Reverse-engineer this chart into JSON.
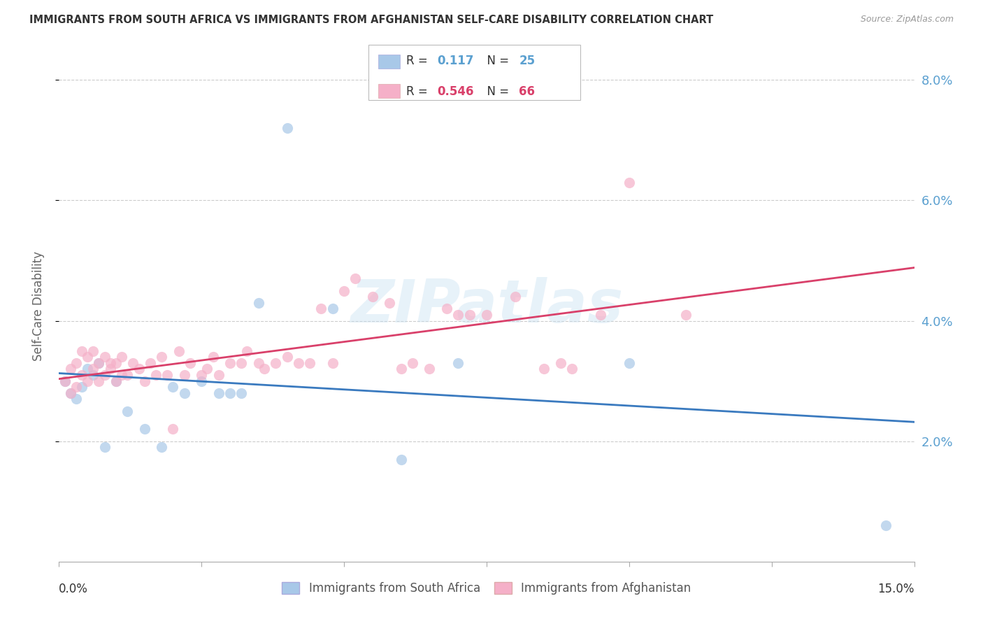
{
  "title": "IMMIGRANTS FROM SOUTH AFRICA VS IMMIGRANTS FROM AFGHANISTAN SELF-CARE DISABILITY CORRELATION CHART",
  "source": "Source: ZipAtlas.com",
  "ylabel": "Self-Care Disability",
  "x_min": 0.0,
  "x_max": 0.15,
  "y_min": 0.0,
  "y_max": 0.085,
  "y_ticks": [
    0.02,
    0.04,
    0.06,
    0.08
  ],
  "y_tick_labels": [
    "2.0%",
    "4.0%",
    "6.0%",
    "8.0%"
  ],
  "background_color": "#ffffff",
  "watermark": "ZIPatlas",
  "blue_scatter_color": "#a8c8e8",
  "pink_scatter_color": "#f5b0c8",
  "blue_line_color": "#3a7abf",
  "pink_line_color": "#d9406a",
  "tick_label_color": "#5ba0d0",
  "legend_R_blue": "0.117",
  "legend_N_blue": "25",
  "legend_R_pink": "0.546",
  "legend_N_pink": "66",
  "sa_x": [
    0.001,
    0.002,
    0.003,
    0.004,
    0.005,
    0.006,
    0.007,
    0.008,
    0.01,
    0.012,
    0.015,
    0.018,
    0.02,
    0.022,
    0.025,
    0.028,
    0.03,
    0.032,
    0.035,
    0.04,
    0.048,
    0.06,
    0.07,
    0.1,
    0.145
  ],
  "sa_y": [
    0.03,
    0.028,
    0.027,
    0.029,
    0.032,
    0.031,
    0.033,
    0.019,
    0.03,
    0.025,
    0.022,
    0.019,
    0.029,
    0.028,
    0.03,
    0.028,
    0.028,
    0.028,
    0.043,
    0.072,
    0.042,
    0.017,
    0.033,
    0.033,
    0.006
  ],
  "af_x": [
    0.001,
    0.002,
    0.002,
    0.003,
    0.003,
    0.004,
    0.004,
    0.005,
    0.005,
    0.006,
    0.006,
    0.007,
    0.007,
    0.008,
    0.008,
    0.009,
    0.009,
    0.01,
    0.01,
    0.011,
    0.011,
    0.012,
    0.013,
    0.014,
    0.015,
    0.016,
    0.017,
    0.018,
    0.019,
    0.02,
    0.021,
    0.022,
    0.023,
    0.025,
    0.026,
    0.027,
    0.028,
    0.03,
    0.032,
    0.033,
    0.035,
    0.036,
    0.038,
    0.04,
    0.042,
    0.044,
    0.046,
    0.048,
    0.05,
    0.052,
    0.055,
    0.058,
    0.06,
    0.062,
    0.065,
    0.068,
    0.07,
    0.072,
    0.075,
    0.08,
    0.085,
    0.088,
    0.09,
    0.095,
    0.1,
    0.11
  ],
  "af_y": [
    0.03,
    0.032,
    0.028,
    0.033,
    0.029,
    0.031,
    0.035,
    0.03,
    0.034,
    0.032,
    0.035,
    0.03,
    0.033,
    0.031,
    0.034,
    0.032,
    0.033,
    0.03,
    0.033,
    0.031,
    0.034,
    0.031,
    0.033,
    0.032,
    0.03,
    0.033,
    0.031,
    0.034,
    0.031,
    0.022,
    0.035,
    0.031,
    0.033,
    0.031,
    0.032,
    0.034,
    0.031,
    0.033,
    0.033,
    0.035,
    0.033,
    0.032,
    0.033,
    0.034,
    0.033,
    0.033,
    0.042,
    0.033,
    0.045,
    0.047,
    0.044,
    0.043,
    0.032,
    0.033,
    0.032,
    0.042,
    0.041,
    0.041,
    0.041,
    0.044,
    0.032,
    0.033,
    0.032,
    0.041,
    0.063,
    0.041
  ]
}
